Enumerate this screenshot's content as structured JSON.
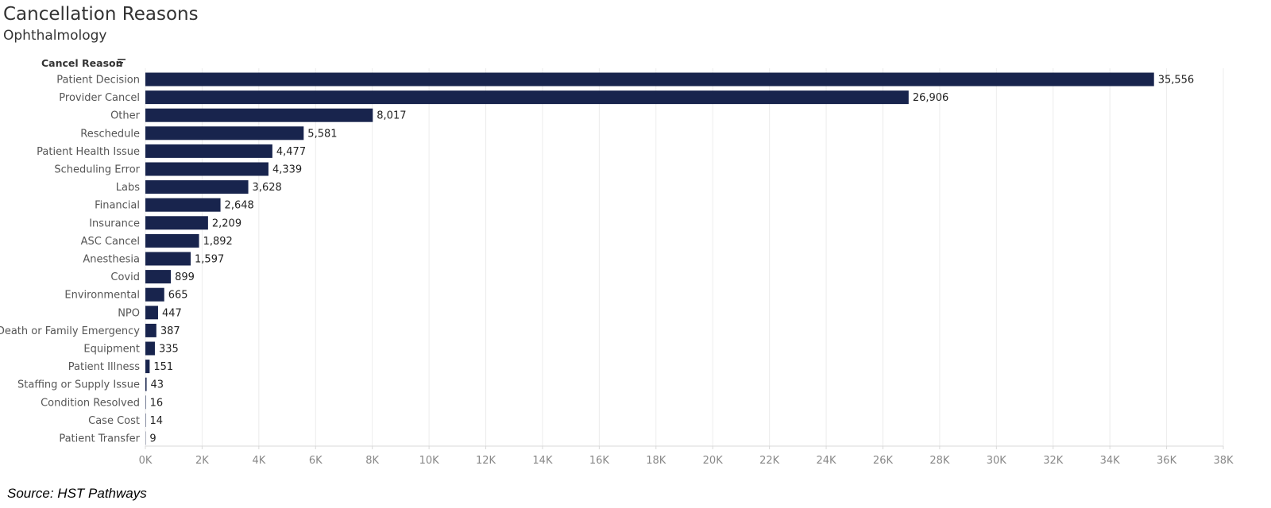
{
  "title": "Cancellation Reasons",
  "subtitle": "Ophthalmology",
  "source": "Source: HST Pathways",
  "colors": {
    "bar": "#18244d",
    "grid": "#ececec",
    "axis": "#d8d8d8"
  },
  "icons": {
    "sort": "sort-descending-icon"
  },
  "chart_data": {
    "type": "bar",
    "orientation": "horizontal",
    "row_header": "Cancel Reason",
    "categories": [
      "Patient Decision",
      "Provider Cancel",
      "Other",
      "Reschedule",
      "Patient Health Issue",
      "Scheduling Error",
      "Labs",
      "Financial",
      "Insurance",
      "ASC Cancel",
      "Anesthesia",
      "Covid",
      "Environmental",
      "NPO",
      "Death or Family Emergency",
      "Equipment",
      "Patient Illness",
      "Staffing or Supply Issue",
      "Condition Resolved",
      "Case Cost",
      "Patient Transfer"
    ],
    "values": [
      35556,
      26906,
      8017,
      5581,
      4477,
      4339,
      3628,
      2648,
      2209,
      1892,
      1597,
      899,
      665,
      447,
      387,
      335,
      151,
      43,
      16,
      14,
      9
    ],
    "value_labels": [
      "35,556",
      "26,906",
      "8,017",
      "5,581",
      "4,477",
      "4,339",
      "3,628",
      "2,648",
      "2,209",
      "1,892",
      "1,597",
      "899",
      "665",
      "447",
      "387",
      "335",
      "151",
      "43",
      "16",
      "14",
      "9"
    ],
    "x_ticks": [
      0,
      2000,
      4000,
      6000,
      8000,
      10000,
      12000,
      14000,
      16000,
      18000,
      20000,
      22000,
      24000,
      26000,
      28000,
      30000,
      32000,
      34000,
      36000,
      38000
    ],
    "x_tick_labels": [
      "0K",
      "2K",
      "4K",
      "6K",
      "8K",
      "10K",
      "12K",
      "14K",
      "16K",
      "18K",
      "20K",
      "22K",
      "24K",
      "26K",
      "28K",
      "30K",
      "32K",
      "34K",
      "36K",
      "38K"
    ],
    "xlim": [
      0,
      38000
    ],
    "grid": true,
    "xlabel": "",
    "ylabel": ""
  }
}
